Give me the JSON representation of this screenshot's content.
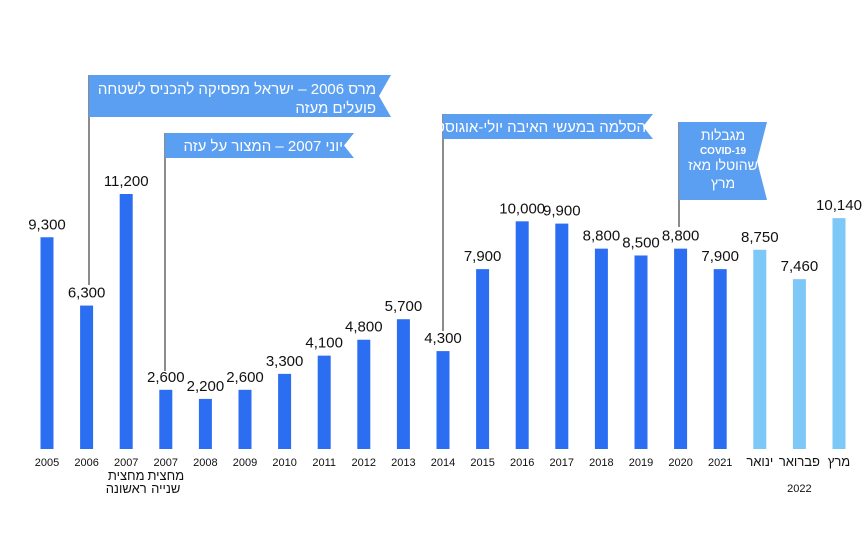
{
  "chart_data": {
    "type": "bar",
    "title": "",
    "xlabel": "",
    "ylabel": "",
    "categories": [
      "2005",
      "2006",
      "2007",
      "2007",
      "2008",
      "2009",
      "2010",
      "2011",
      "2012",
      "2013",
      "2014",
      "2015",
      "2016",
      "2017",
      "2018",
      "2019",
      "2020",
      "2021",
      "ינואר",
      "פברואר",
      "מרץ"
    ],
    "category_sublabels": [
      "",
      "",
      "מחצית\nראשונה",
      "מחצית\nשנייה",
      "",
      "",
      "",
      "",
      "",
      "",
      "",
      "",
      "",
      "",
      "",
      "",
      "",
      "",
      "",
      "",
      ""
    ],
    "values": [
      9300,
      6300,
      11200,
      2600,
      2200,
      2600,
      3300,
      4100,
      4800,
      5700,
      4300,
      7900,
      10000,
      9900,
      8800,
      8500,
      8800,
      7900,
      8750,
      7460,
      10140
    ],
    "value_labels": [
      "9,300",
      "6,300",
      "11,200",
      "2,600",
      "2,200",
      "2,600",
      "3,300",
      "4,100",
      "4,800",
      "5,700",
      "4,300",
      "7,900",
      "10,000",
      "9,900",
      "8,800",
      "8,500",
      "8,800",
      "7,900",
      "8,750",
      "7,460",
      "10,140"
    ],
    "bar_groups": [
      "annual",
      "annual",
      "annual",
      "annual",
      "annual",
      "annual",
      "annual",
      "annual",
      "annual",
      "annual",
      "annual",
      "annual",
      "annual",
      "annual",
      "annual",
      "annual",
      "annual",
      "annual",
      "monthly",
      "monthly",
      "monthly"
    ],
    "group_label": "2022",
    "colors": {
      "annual": "#2c6ef2",
      "monthly": "#7ec8f7",
      "annotation_fill": "#5b9ff2",
      "leader_line": "#666666"
    },
    "ylim": [
      0,
      11200
    ],
    "grid": false,
    "annotations": [
      {
        "lines": [
          "מרס 2006 – ישראל מפסיקה להכניס לשטחה",
          "פועלים מעזה"
        ],
        "attached_to_index": 1
      },
      {
        "lines": [
          "יוני 2007 – המצור על עזה"
        ],
        "attached_to_index": 3
      },
      {
        "lines": [
          "הסלמה במעשי האיבה יולי-אוגוסט"
        ],
        "attached_to_index": 10
      },
      {
        "lines": [
          "מגבלות",
          "COVID-19",
          "שהוטלו מאז",
          "מרץ"
        ],
        "attached_to_index": 16
      }
    ]
  }
}
